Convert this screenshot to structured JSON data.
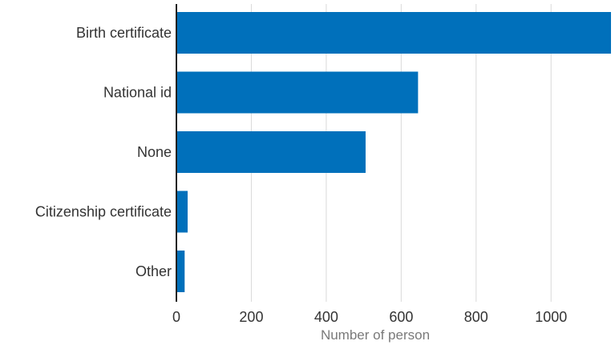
{
  "chart_data": {
    "type": "bar",
    "orientation": "horizontal",
    "categories": [
      "Birth certificate",
      "National id",
      "None",
      "Citizenship certificate",
      "Other"
    ],
    "values": [
      1160,
      645,
      505,
      30,
      22
    ],
    "xlabel": "Number of person",
    "ylabel": "",
    "xlim": [
      0,
      1160
    ],
    "xticks": [
      0,
      200,
      400,
      600,
      800,
      1000
    ],
    "xtick_labels": [
      "0",
      "200",
      "400",
      "600",
      "800",
      "1000"
    ],
    "grid": "vertical",
    "legend": "none",
    "bar_color": "#0070bb"
  }
}
